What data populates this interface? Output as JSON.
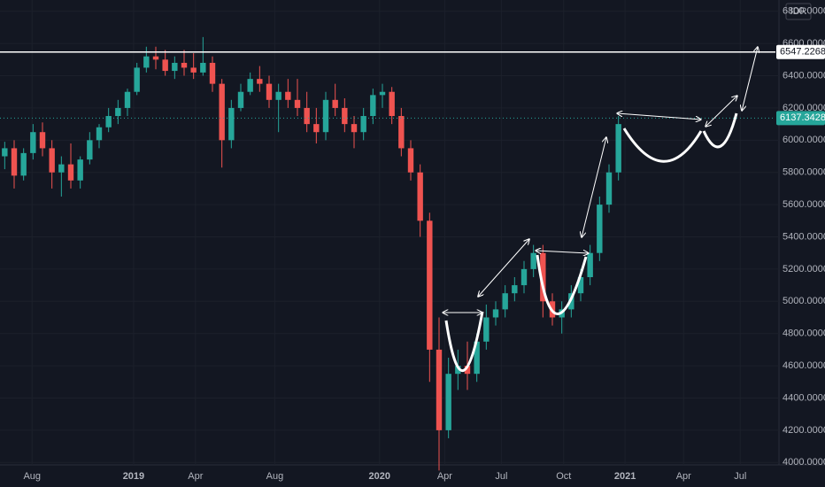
{
  "chart_data": {
    "type": "candlestick",
    "currency": "IDR",
    "up_color": "#26a69a",
    "down_color": "#ef5350",
    "open": [
      5900,
      5950,
      5780,
      5920,
      6050,
      5950,
      5800,
      5850,
      5750,
      5880,
      6000,
      6080,
      6150,
      6200,
      6300,
      6450,
      6520,
      6500,
      6430,
      6480,
      6450,
      6420,
      6480,
      6350,
      6000,
      6200,
      6300,
      6380,
      6350,
      6250,
      6300,
      6250,
      6200,
      6100,
      6050,
      6250,
      6200,
      6100,
      6050,
      6150,
      6280,
      6300,
      6150,
      5950,
      5800,
      5500,
      4700,
      4200,
      4550,
      4600,
      4550,
      4750,
      4900,
      4950,
      5050,
      5100,
      5200,
      5300,
      5000,
      4900,
      4950,
      5050,
      5150,
      5300,
      5600,
      5800
    ],
    "high": [
      5990,
      6000,
      5950,
      6100,
      6110,
      6000,
      5900,
      5980,
      5900,
      6050,
      6100,
      6200,
      6250,
      6320,
      6480,
      6580,
      6580,
      6560,
      6520,
      6560,
      6540,
      6640,
      6520,
      6380,
      6250,
      6350,
      6420,
      6460,
      6400,
      6350,
      6380,
      6380,
      6300,
      6200,
      6300,
      6350,
      6260,
      6150,
      6200,
      6320,
      6350,
      6330,
      6200,
      6000,
      5850,
      5550,
      4900,
      4650,
      4700,
      4750,
      4800,
      4980,
      5000,
      5100,
      5150,
      5250,
      5350,
      5350,
      5050,
      5000,
      5100,
      5200,
      5350,
      5650,
      5850,
      6150
    ],
    "low": [
      5820,
      5700,
      5750,
      5880,
      5900,
      5700,
      5650,
      5700,
      5700,
      5850,
      5950,
      6050,
      6100,
      6150,
      6280,
      6420,
      6440,
      6400,
      6380,
      6400,
      6380,
      6400,
      6300,
      5830,
      5950,
      6180,
      6280,
      6300,
      6200,
      6050,
      6200,
      6150,
      6050,
      5980,
      6000,
      6150,
      6050,
      5950,
      6000,
      6100,
      6200,
      6100,
      5900,
      5750,
      5400,
      4500,
      3950,
      4150,
      4450,
      4450,
      4500,
      4700,
      4850,
      4900,
      5000,
      5050,
      5150,
      4900,
      4850,
      4800,
      4900,
      5000,
      5100,
      5250,
      5550,
      5750
    ],
    "close": [
      5950,
      5780,
      5920,
      6050,
      5950,
      5800,
      5850,
      5750,
      5880,
      6000,
      6080,
      6150,
      6200,
      6300,
      6450,
      6520,
      6500,
      6430,
      6480,
      6450,
      6420,
      6480,
      6350,
      6000,
      6200,
      6300,
      6380,
      6350,
      6250,
      6300,
      6250,
      6200,
      6100,
      6050,
      6250,
      6200,
      6100,
      6050,
      6150,
      6280,
      6300,
      6150,
      5950,
      5800,
      5500,
      4700,
      4200,
      4550,
      4600,
      4550,
      4750,
      4900,
      4950,
      5050,
      5100,
      5200,
      5300,
      5000,
      4900,
      4950,
      5050,
      5150,
      5300,
      5600,
      5800,
      6100
    ],
    "xlim": [
      0,
      82.5
    ],
    "xticks": [
      {
        "value": 3.4,
        "label": "Aug"
      },
      {
        "value": 14.15,
        "label": "2019"
      },
      {
        "value": 20.7,
        "label": "Apr"
      },
      {
        "value": 29.1,
        "label": "Aug"
      },
      {
        "value": 40.2,
        "label": "2020"
      },
      {
        "value": 47.1,
        "label": "Apr"
      },
      {
        "value": 53.1,
        "label": "Jul"
      },
      {
        "value": 59.7,
        "label": "Oct"
      },
      {
        "value": 66.2,
        "label": "2021"
      },
      {
        "value": 72.4,
        "label": "Apr"
      },
      {
        "value": 78.4,
        "label": "Jul"
      }
    ],
    "ylim": [
      3985,
      6870
    ],
    "yticks": [
      {
        "value": 4000,
        "label": "4000.0000"
      },
      {
        "value": 4200,
        "label": "4200.0000"
      },
      {
        "value": 4400,
        "label": "4400.0000"
      },
      {
        "value": 4600,
        "label": "4600.0000"
      },
      {
        "value": 4800,
        "label": "4800.0000"
      },
      {
        "value": 5000,
        "label": "5000.0000"
      },
      {
        "value": 5200,
        "label": "5200.0000"
      },
      {
        "value": 5400,
        "label": "5400.0000"
      },
      {
        "value": 5600,
        "label": "5600.0000"
      },
      {
        "value": 5800,
        "label": "5800.0000"
      },
      {
        "value": 6000,
        "label": "6000.0000"
      },
      {
        "value": 6200,
        "label": "6200.0000"
      },
      {
        "value": 6400,
        "label": "6400.0000"
      },
      {
        "value": 6600,
        "label": "6600.0000"
      },
      {
        "value": 6800,
        "label": "6800.0000"
      }
    ],
    "hlines": [
      {
        "value": 6547.2268,
        "color": "#ffffff",
        "style": "solid",
        "label_bg": "#ffffff",
        "label_color": "#131722"
      },
      {
        "value": 6137.3428,
        "color": "#26a69a",
        "style": "dotted",
        "label_bg": "#26a69a",
        "label_color": "#ffffff"
      }
    ]
  }
}
